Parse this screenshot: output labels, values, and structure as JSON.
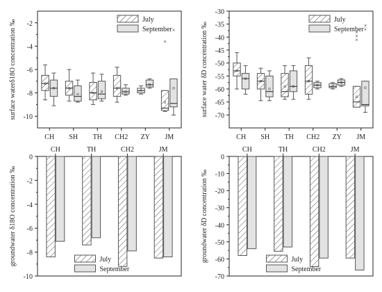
{
  "colors": {
    "axis": "#222222",
    "box_edge": "#555555",
    "july_stroke": "#555555",
    "september_fill": "#e3e3e3",
    "outlier": "#222222"
  },
  "chart_data": [
    {
      "id": "tl",
      "type": "box",
      "ylabel": "surface waterδ18O concentration ‰",
      "categories": [
        "CH",
        "SH",
        "TH",
        "CH2",
        "ZY",
        "JM"
      ],
      "category_axis": "bottom",
      "ylim": [
        -11,
        -1
      ],
      "yticks": [
        -10,
        -8,
        -6,
        -4,
        -2
      ],
      "legend": {
        "position": "top-right",
        "entries": [
          "July",
          "September"
        ]
      },
      "series": [
        {
          "name": "July",
          "pattern": "hatch",
          "boxes": [
            {
              "whisker_low": -8.6,
              "q1": -7.8,
              "median": -7.2,
              "q3": -6.5,
              "whisker_high": -5.6,
              "mean": -7.2,
              "outliers": []
            },
            {
              "whisker_low": -8.7,
              "q1": -8.2,
              "median": -7.6,
              "q3": -7.0,
              "whisker_high": -6.0,
              "mean": -7.6,
              "outliers": []
            },
            {
              "whisker_low": -9.0,
              "q1": -8.6,
              "median": -8.0,
              "q3": -7.1,
              "whisker_high": -6.3,
              "mean": -8.0,
              "outliers": []
            },
            {
              "whisker_low": -8.8,
              "q1": -8.3,
              "median": -7.6,
              "q3": -6.5,
              "whisker_high": -5.8,
              "mean": -7.6,
              "outliers": []
            },
            {
              "whisker_low": -8.1,
              "q1": -8.0,
              "median": -7.8,
              "q3": -7.6,
              "whisker_high": -7.4,
              "mean": -7.8,
              "outliers": []
            },
            {
              "whisker_low": -9.6,
              "q1": -9.5,
              "median": -9.3,
              "q3": -7.8,
              "whisker_high": -7.8,
              "mean": -8.8,
              "outliers": [
                -3.6
              ]
            }
          ]
        },
        {
          "name": "September",
          "pattern": "fill",
          "boxes": [
            {
              "whisker_low": -9.1,
              "q1": -8.3,
              "median": -7.6,
              "q3": -6.9,
              "whisker_high": -6.3,
              "mean": -7.6,
              "outliers": []
            },
            {
              "whisker_low": -8.8,
              "q1": -8.7,
              "median": -8.3,
              "q3": -7.4,
              "whisker_high": -6.9,
              "mean": -8.1,
              "outliers": []
            },
            {
              "whisker_low": -8.7,
              "q1": -8.5,
              "median": -8.1,
              "q3": -7.0,
              "whisker_high": -6.4,
              "mean": -7.9,
              "outliers": []
            },
            {
              "whisker_low": -8.2,
              "q1": -8.1,
              "median": -7.9,
              "q3": -7.6,
              "whisker_high": -7.3,
              "mean": -7.9,
              "outliers": []
            },
            {
              "whisker_low": -7.6,
              "q1": -7.5,
              "median": -7.3,
              "q3": -6.9,
              "whisker_high": -6.8,
              "mean": -7.3,
              "outliers": []
            },
            {
              "whisker_low": -9.9,
              "q1": -9.2,
              "median": -8.9,
              "q3": -6.8,
              "whisker_high": -6.8,
              "mean": -7.6,
              "outliers": [
                -2.6
              ]
            }
          ]
        }
      ]
    },
    {
      "id": "tr",
      "type": "box",
      "ylabel": "surface water δD concentration ‰",
      "categories": [
        "CH",
        "SH",
        "TH",
        "CH2",
        "ZY",
        "JM"
      ],
      "category_axis": "bottom",
      "ylim": [
        -75,
        -30
      ],
      "yticks": [
        -70,
        -65,
        -60,
        -55,
        -50,
        -45,
        -40,
        -35,
        -30
      ],
      "legend": {
        "position": "top-right",
        "entries": [
          "July",
          "September"
        ]
      },
      "series": [
        {
          "name": "July",
          "pattern": "hatch",
          "boxes": [
            {
              "whisker_low": -60,
              "q1": -55,
              "median": -53,
              "q3": -50,
              "whisker_high": -46,
              "mean": -53,
              "outliers": []
            },
            {
              "whisker_low": -64.5,
              "q1": -60,
              "median": -57,
              "q3": -54,
              "whisker_high": -52,
              "mean": -57,
              "outliers": []
            },
            {
              "whisker_low": -64,
              "q1": -63,
              "median": -61,
              "q3": -54,
              "whisker_high": -51,
              "mean": -59,
              "outliers": []
            },
            {
              "whisker_low": -64,
              "q1": -62,
              "median": -57,
              "q3": -51,
              "whisker_high": -48,
              "mean": -57,
              "outliers": []
            },
            {
              "whisker_low": -60,
              "q1": -59.5,
              "median": -59,
              "q3": -58,
              "whisker_high": -57.5,
              "mean": -58.8,
              "outliers": []
            },
            {
              "whisker_low": -67,
              "q1": -67,
              "median": -65,
              "q3": -59,
              "whisker_high": -59,
              "mean": -63,
              "outliers": [
                -38,
                -39.5,
                -41
              ]
            }
          ]
        },
        {
          "name": "September",
          "pattern": "fill",
          "boxes": [
            {
              "whisker_low": -62,
              "q1": -60,
              "median": -56,
              "q3": -54,
              "whisker_high": -51,
              "mean": -56,
              "outliers": []
            },
            {
              "whisker_low": -64.5,
              "q1": -63,
              "median": -61,
              "q3": -55,
              "whisker_high": -53,
              "mean": -60,
              "outliers": []
            },
            {
              "whisker_low": -64,
              "q1": -61,
              "median": -59,
              "q3": -53,
              "whisker_high": -51,
              "mean": -59,
              "outliers": []
            },
            {
              "whisker_low": -60,
              "q1": -59.5,
              "median": -58.5,
              "q3": -57.5,
              "whisker_high": -57,
              "mean": -58.5,
              "outliers": []
            },
            {
              "whisker_low": -59,
              "q1": -58.5,
              "median": -57.5,
              "q3": -56.5,
              "whisker_high": -56,
              "mean": -57.5,
              "outliers": []
            },
            {
              "whisker_low": -69,
              "q1": -66.5,
              "median": -66,
              "q3": -57,
              "whisker_high": -57,
              "mean": -59.5,
              "outliers": [
                -35.5,
                -37
              ]
            }
          ]
        }
      ]
    },
    {
      "id": "bl",
      "type": "bar",
      "ylabel": "groundwater δ18O concentration ‰",
      "categories": [
        "CH",
        "TH",
        "CH2",
        "JM"
      ],
      "category_axis": "top",
      "ylim": [
        -10,
        0
      ],
      "yticks": [
        -10,
        -8,
        -6,
        -4,
        -2,
        0
      ],
      "legend": {
        "position": "bottom-center",
        "entries": [
          "July",
          "September"
        ]
      },
      "series": [
        {
          "name": "July",
          "pattern": "hatch",
          "values": [
            -8.4,
            -7.4,
            -9.2,
            -8.5
          ]
        },
        {
          "name": "September",
          "pattern": "fill",
          "values": [
            -7.1,
            -6.8,
            -7.9,
            -8.4
          ]
        }
      ]
    },
    {
      "id": "br",
      "type": "bar",
      "ylabel": "groundwater δD concentration ‰",
      "categories": [
        "CH",
        "TH",
        "CH2",
        "JM"
      ],
      "category_axis": "top",
      "ylim": [
        -70,
        0
      ],
      "yticks": [
        -70,
        -60,
        -50,
        -40,
        -30,
        -20,
        -10,
        0
      ],
      "legend": {
        "position": "bottom-center",
        "entries": [
          "July",
          "September"
        ]
      },
      "series": [
        {
          "name": "July",
          "pattern": "hatch",
          "values": [
            -58,
            -55.5,
            -64.5,
            -59.5
          ]
        },
        {
          "name": "September",
          "pattern": "fill",
          "values": [
            -54,
            -53,
            -59.5,
            -66.5
          ]
        }
      ]
    }
  ]
}
